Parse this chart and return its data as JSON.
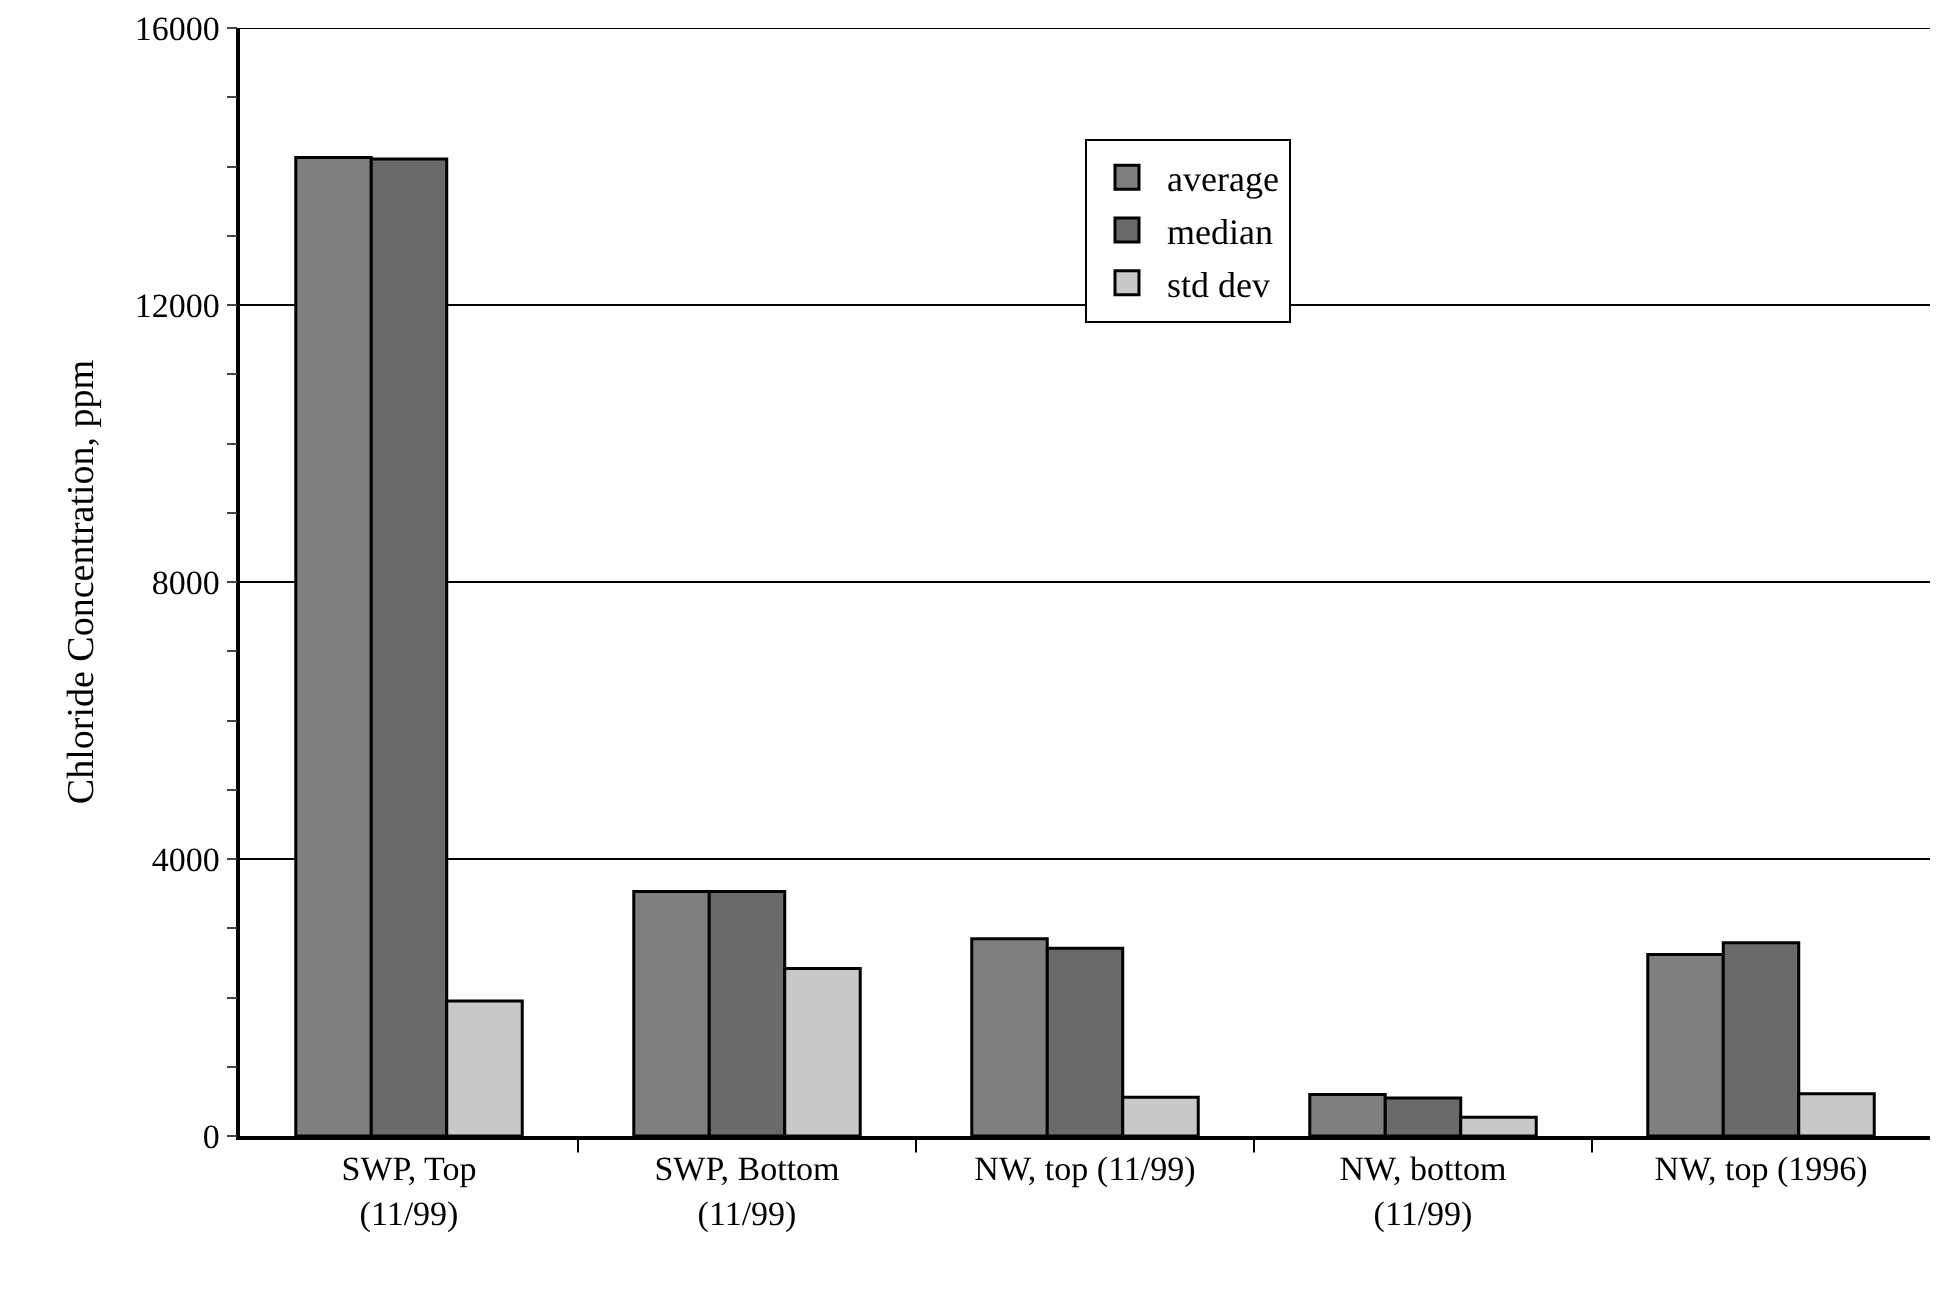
{
  "chart_data": {
    "type": "bar",
    "ylabel": "Chloride Concentration, ppm",
    "categories": [
      "SWP, Top\n(11/99)",
      "SWP, Bottom\n(11/99)",
      "NW, top (11/99)",
      "NW, bottom\n(11/99)",
      "NW, top (1996)"
    ],
    "series": [
      {
        "name": "average",
        "color": "#7f7f7f",
        "values": [
          14130,
          3530,
          2850,
          600,
          2620
        ]
      },
      {
        "name": "median",
        "color": "#6a6a6a",
        "values": [
          14110,
          3530,
          2710,
          550,
          2790
        ]
      },
      {
        "name": "std dev",
        "color": "#c8c8c8",
        "values": [
          1950,
          2420,
          560,
          270,
          610
        ]
      }
    ],
    "ylim": [
      0,
      16000
    ],
    "yticks": [
      0,
      {
        "value": 1000,
        "label": null
      },
      {
        "value": 2000,
        "label": null
      },
      {
        "value": 3000,
        "label": null
      },
      4000,
      {
        "value": 5000,
        "label": null
      },
      {
        "value": 6000,
        "label": null
      },
      {
        "value": 7000,
        "label": null
      },
      8000,
      {
        "value": 9000,
        "label": null
      },
      {
        "value": 10000,
        "label": null
      },
      {
        "value": 11000,
        "label": null
      },
      12000,
      {
        "value": 13000,
        "label": null
      },
      {
        "value": 14000,
        "label": null
      },
      {
        "value": 15000,
        "label": null
      },
      16000
    ],
    "grid": "y",
    "legend": "top"
  }
}
